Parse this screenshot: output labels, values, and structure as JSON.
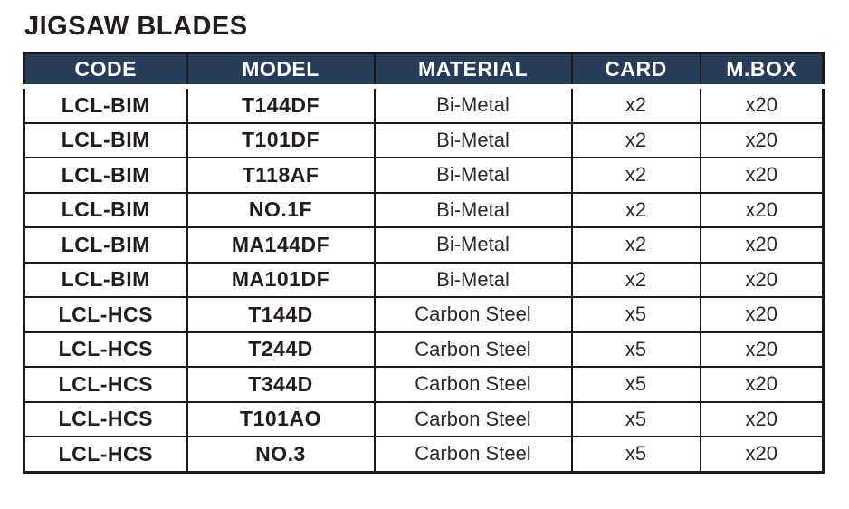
{
  "title": "JIGSAW BLADES",
  "colors": {
    "header_bg": "#273c58",
    "header_text": "#ffffff",
    "border": "#1c1917",
    "body_text": "#2e2826"
  },
  "table": {
    "headers": [
      "CODE",
      "MODEL",
      "MATERIAL",
      "CARD",
      "M.BOX"
    ],
    "rows": [
      [
        "LCL-BIM",
        "T144DF",
        "Bi-Metal",
        "x2",
        "x20"
      ],
      [
        "LCL-BIM",
        "T101DF",
        "Bi-Metal",
        "x2",
        "x20"
      ],
      [
        "LCL-BIM",
        "T118AF",
        "Bi-Metal",
        "x2",
        "x20"
      ],
      [
        "LCL-BIM",
        "NO.1F",
        "Bi-Metal",
        "x2",
        "x20"
      ],
      [
        "LCL-BIM",
        "MA144DF",
        "Bi-Metal",
        "x2",
        "x20"
      ],
      [
        "LCL-BIM",
        "MA101DF",
        "Bi-Metal",
        "x2",
        "x20"
      ],
      [
        "LCL-HCS",
        "T144D",
        "Carbon Steel",
        "x5",
        "x20"
      ],
      [
        "LCL-HCS",
        "T244D",
        "Carbon Steel",
        "x5",
        "x20"
      ],
      [
        "LCL-HCS",
        "T344D",
        "Carbon Steel",
        "x5",
        "x20"
      ],
      [
        "LCL-HCS",
        "T101AO",
        "Carbon Steel",
        "x5",
        "x20"
      ],
      [
        "LCL-HCS",
        "NO.3",
        "Carbon Steel",
        "x5",
        "x20"
      ]
    ]
  }
}
